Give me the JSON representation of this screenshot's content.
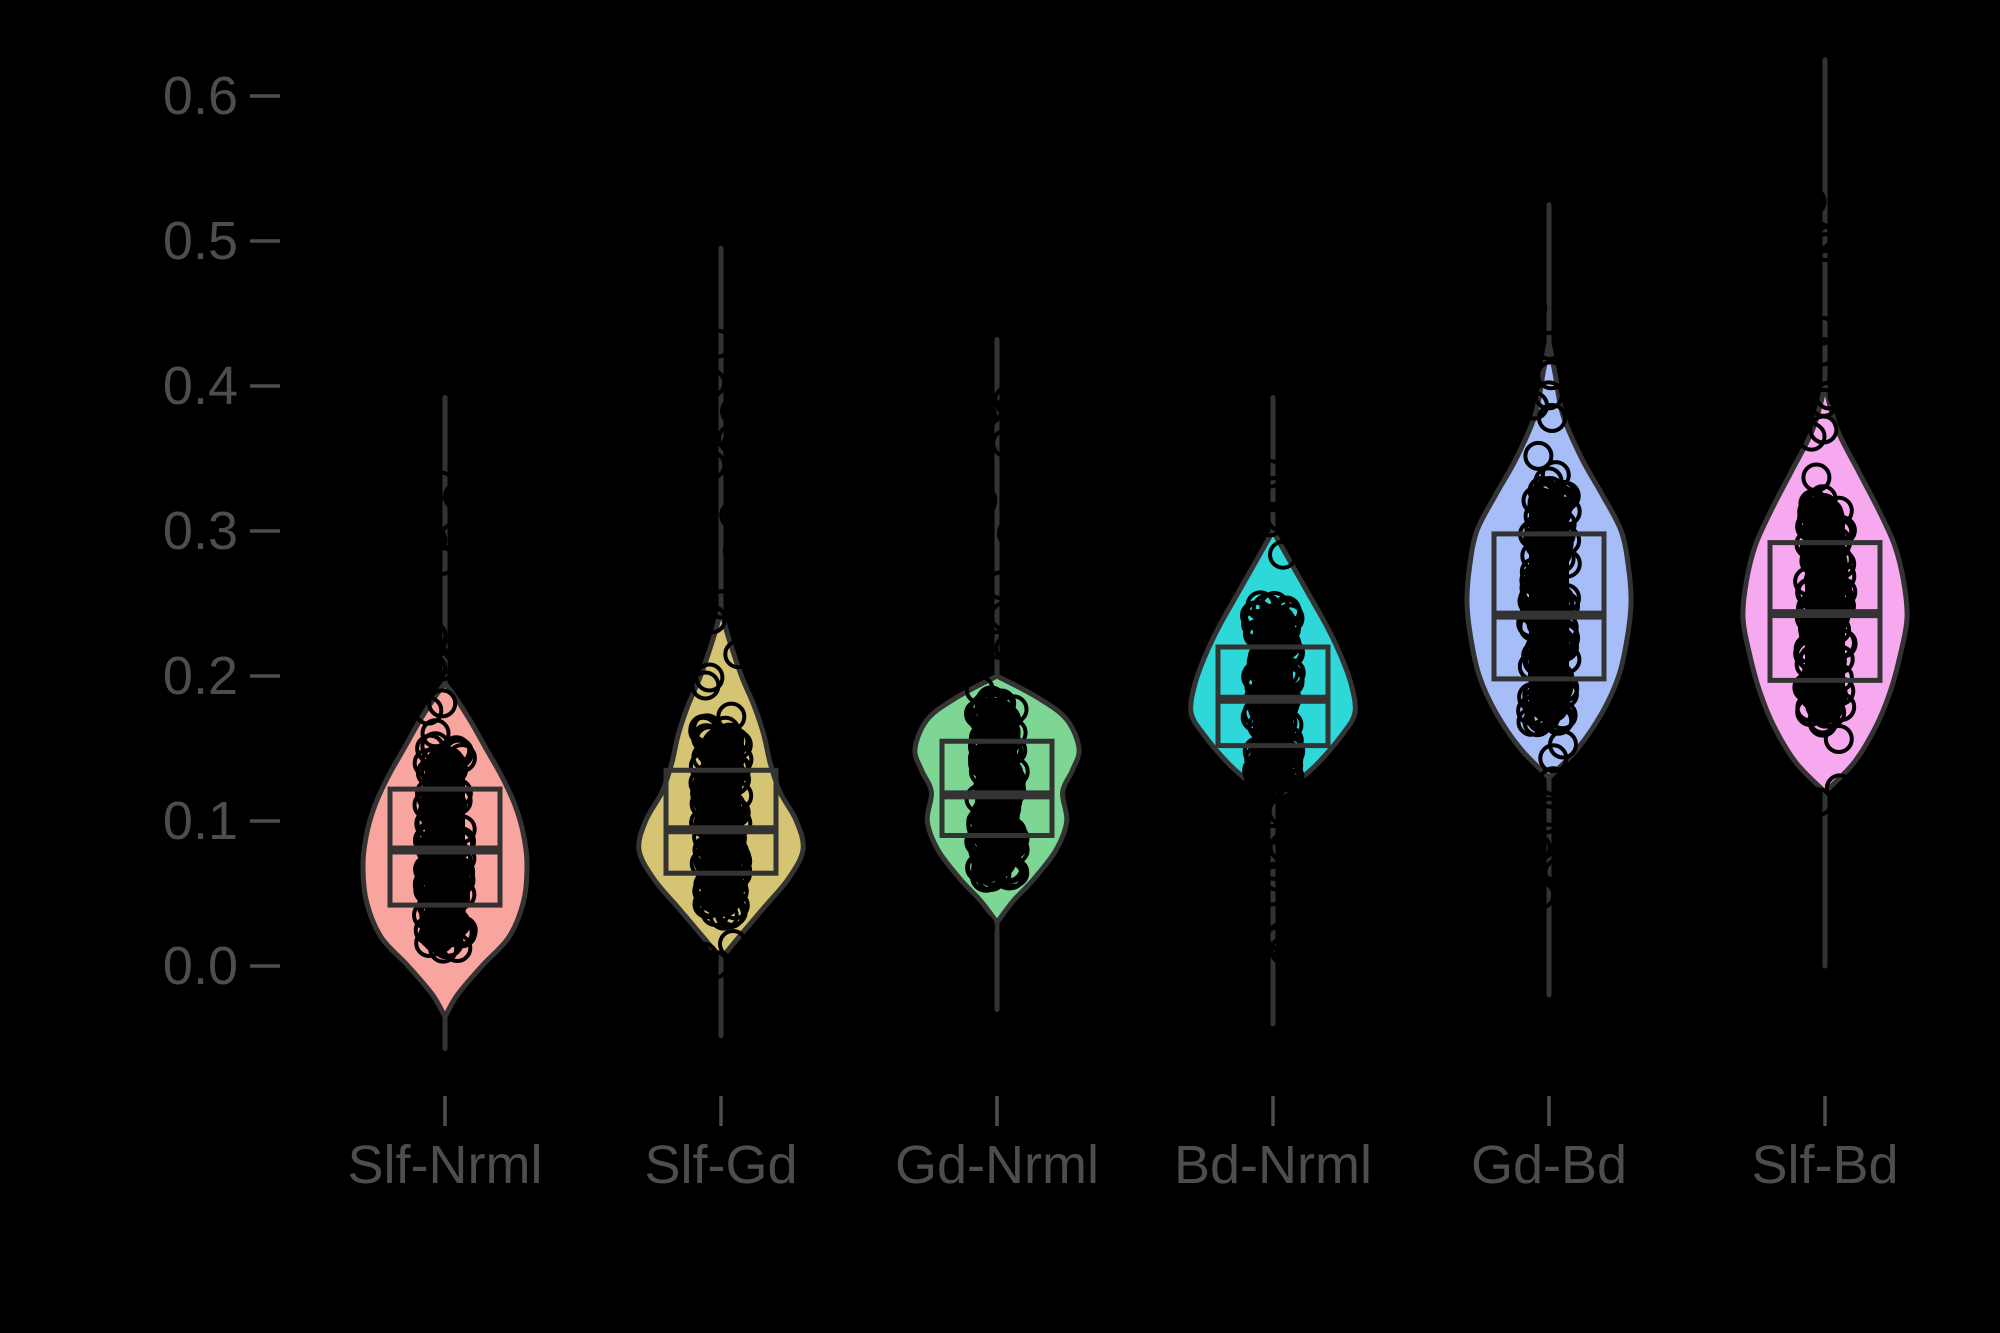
{
  "chart_data": {
    "type": "violin",
    "title": "",
    "xlabel": "",
    "ylabel": "",
    "ylim": [
      -0.06,
      0.63
    ],
    "yticks": [
      0.0,
      0.1,
      0.2,
      0.3,
      0.4,
      0.5,
      0.6
    ],
    "ytick_labels": [
      "0.0",
      "0.1",
      "0.2",
      "0.3",
      "0.4",
      "0.5",
      "0.6"
    ],
    "categories": [
      "Slf-Nrml",
      "Slf-Gd",
      "Gd-Nrml",
      "Bd-Nrml",
      "Gd-Bd",
      "Slf-Bd"
    ],
    "grid": false,
    "legend": "none",
    "background_color": "#000000",
    "text_color": "#4d4d4d",
    "outline_color": "#333333",
    "groups": [
      {
        "category": "Slf-Nrml",
        "color": "#F8A59F",
        "boxplot": {
          "q1": 0.042,
          "median": 0.08,
          "q3": 0.122
        },
        "violin_range": [
          -0.035,
          0.195
        ],
        "density_profile": [
          [
            -0.035,
            0.0
          ],
          [
            -0.02,
            0.15
          ],
          [
            0.0,
            0.45
          ],
          [
            0.02,
            0.78
          ],
          [
            0.045,
            0.96
          ],
          [
            0.07,
            1.0
          ],
          [
            0.09,
            0.96
          ],
          [
            0.11,
            0.86
          ],
          [
            0.13,
            0.7
          ],
          [
            0.15,
            0.5
          ],
          [
            0.17,
            0.3
          ],
          [
            0.185,
            0.13
          ],
          [
            0.195,
            0.0
          ]
        ],
        "whisker_range": [
          -0.057,
          0.392
        ],
        "points_range": [
          -0.008,
          0.35
        ]
      },
      {
        "category": "Slf-Gd",
        "color": "#D4C474",
        "boxplot": {
          "q1": 0.064,
          "median": 0.094,
          "q3": 0.135
        },
        "violin_range": [
          0.005,
          0.245
        ],
        "density_profile": [
          [
            0.005,
            0.0
          ],
          [
            0.02,
            0.22
          ],
          [
            0.04,
            0.52
          ],
          [
            0.06,
            0.82
          ],
          [
            0.08,
            1.0
          ],
          [
            0.1,
            0.92
          ],
          [
            0.12,
            0.72
          ],
          [
            0.14,
            0.6
          ],
          [
            0.16,
            0.52
          ],
          [
            0.18,
            0.4
          ],
          [
            0.2,
            0.25
          ],
          [
            0.225,
            0.1
          ],
          [
            0.245,
            0.0
          ]
        ],
        "whisker_range": [
          -0.048,
          0.495
        ],
        "points_range": [
          0.0,
          0.45
        ]
      },
      {
        "category": "Gd-Nrml",
        "color": "#7DD694",
        "boxplot": {
          "q1": 0.09,
          "median": 0.118,
          "q3": 0.155
        },
        "violin_range": [
          0.03,
          0.2
        ],
        "density_profile": [
          [
            0.03,
            0.0
          ],
          [
            0.045,
            0.2
          ],
          [
            0.06,
            0.45
          ],
          [
            0.08,
            0.72
          ],
          [
            0.1,
            0.85
          ],
          [
            0.12,
            0.8
          ],
          [
            0.135,
            0.92
          ],
          [
            0.15,
            1.0
          ],
          [
            0.17,
            0.85
          ],
          [
            0.185,
            0.5
          ],
          [
            0.2,
            0.0
          ]
        ],
        "whisker_range": [
          -0.03,
          0.432
        ],
        "points_range": [
          0.015,
          0.395
        ]
      },
      {
        "category": "Bd-Nrml",
        "color": "#2FD8D8",
        "boxplot": {
          "q1": 0.152,
          "median": 0.184,
          "q3": 0.22
        },
        "violin_range": [
          0.115,
          0.3
        ],
        "density_profile": [
          [
            0.115,
            0.0
          ],
          [
            0.125,
            0.25
          ],
          [
            0.14,
            0.55
          ],
          [
            0.16,
            0.85
          ],
          [
            0.175,
            1.0
          ],
          [
            0.195,
            0.95
          ],
          [
            0.215,
            0.82
          ],
          [
            0.235,
            0.65
          ],
          [
            0.255,
            0.45
          ],
          [
            0.275,
            0.25
          ],
          [
            0.3,
            0.0
          ]
        ],
        "whisker_range": [
          -0.04,
          0.392
        ],
        "points_range": [
          0.0,
          0.35
        ]
      },
      {
        "category": "Gd-Bd",
        "color": "#A7BDF7",
        "boxplot": {
          "q1": 0.198,
          "median": 0.242,
          "q3": 0.298
        },
        "violin_range": [
          0.13,
          0.43
        ],
        "density_profile": [
          [
            0.13,
            0.0
          ],
          [
            0.15,
            0.35
          ],
          [
            0.175,
            0.65
          ],
          [
            0.2,
            0.85
          ],
          [
            0.225,
            0.95
          ],
          [
            0.25,
            1.0
          ],
          [
            0.275,
            0.97
          ],
          [
            0.3,
            0.88
          ],
          [
            0.325,
            0.65
          ],
          [
            0.35,
            0.4
          ],
          [
            0.38,
            0.17
          ],
          [
            0.41,
            0.07
          ],
          [
            0.43,
            0.0
          ]
        ],
        "whisker_range": [
          -0.02,
          0.525
        ],
        "points_range": [
          0.045,
          0.46
        ]
      },
      {
        "category": "Slf-Bd",
        "color": "#F7A9EF",
        "boxplot": {
          "q1": 0.197,
          "median": 0.243,
          "q3": 0.292
        },
        "violin_range": [
          0.12,
          0.4
        ],
        "density_profile": [
          [
            0.12,
            0.0
          ],
          [
            0.14,
            0.35
          ],
          [
            0.165,
            0.62
          ],
          [
            0.19,
            0.8
          ],
          [
            0.215,
            0.92
          ],
          [
            0.24,
            1.0
          ],
          [
            0.265,
            0.96
          ],
          [
            0.29,
            0.85
          ],
          [
            0.315,
            0.65
          ],
          [
            0.34,
            0.42
          ],
          [
            0.37,
            0.15
          ],
          [
            0.4,
            0.0
          ]
        ],
        "whisker_range": [
          0.0,
          0.625
        ],
        "points_range": [
          0.07,
          0.55
        ]
      }
    ]
  }
}
